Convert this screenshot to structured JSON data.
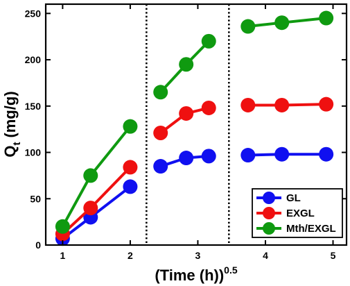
{
  "chart_data": {
    "type": "line",
    "xlabel_main": "(Time (h))",
    "xlabel_sup": "0.5",
    "ylabel_main": "Q",
    "ylabel_sub": "t",
    "ylabel_units": "(mg/g)",
    "xlim": [
      0.75,
      5.2
    ],
    "ylim": [
      0,
      260
    ],
    "xticks": [
      1,
      2,
      3,
      4,
      5
    ],
    "yticks": [
      0,
      50,
      100,
      150,
      200,
      250
    ],
    "xtick_labels": [
      "1",
      "2",
      "3",
      "4",
      "5"
    ],
    "ytick_labels": [
      "0",
      "50",
      "100",
      "150",
      "200",
      "250"
    ],
    "dividers": [
      2.24,
      3.46
    ],
    "legend_position": "bottom-right",
    "series": [
      {
        "name": "GL",
        "color": "#1010f0",
        "segments": [
          [
            [
              1.0,
              7
            ],
            [
              1.414,
              30
            ],
            [
              2.0,
              63
            ]
          ],
          [
            [
              2.449,
              85
            ],
            [
              2.828,
              94
            ],
            [
              3.162,
              96
            ]
          ],
          [
            [
              3.742,
              97
            ],
            [
              4.243,
              98
            ],
            [
              4.899,
              98
            ]
          ]
        ]
      },
      {
        "name": "EXGL",
        "color": "#ef1010",
        "segments": [
          [
            [
              1.0,
              12
            ],
            [
              1.414,
              40
            ],
            [
              2.0,
              84
            ]
          ],
          [
            [
              2.449,
              121
            ],
            [
              2.828,
              142
            ],
            [
              3.162,
              148
            ]
          ],
          [
            [
              3.742,
              151
            ],
            [
              4.243,
              151
            ],
            [
              4.899,
              152
            ]
          ]
        ]
      },
      {
        "name": "Mth/EXGL",
        "color": "#0f9a10",
        "segments": [
          [
            [
              1.0,
              20
            ],
            [
              1.414,
              75
            ],
            [
              2.0,
              128
            ]
          ],
          [
            [
              2.449,
              165
            ],
            [
              2.828,
              195
            ],
            [
              3.162,
              220
            ]
          ],
          [
            [
              3.742,
              236
            ],
            [
              4.243,
              240
            ],
            [
              4.899,
              245
            ]
          ]
        ]
      }
    ]
  }
}
